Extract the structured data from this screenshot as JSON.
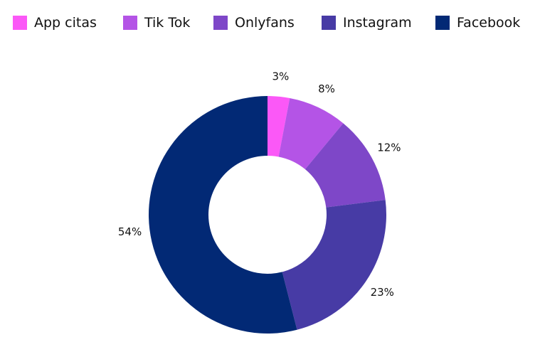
{
  "chart_data": {
    "type": "pie",
    "variant": "donut",
    "legend_position": "top",
    "categories": [
      "App citas",
      "Tik Tok",
      "Onlyfans",
      "Instagram",
      "Facebook"
    ],
    "values": [
      3,
      8,
      12,
      23,
      54
    ],
    "labels": [
      "3%",
      "8%",
      "12%",
      "23%",
      "54%"
    ],
    "colors": [
      "#fb58f7",
      "#b454e6",
      "#7e47c8",
      "#473ba5",
      "#022975"
    ]
  }
}
